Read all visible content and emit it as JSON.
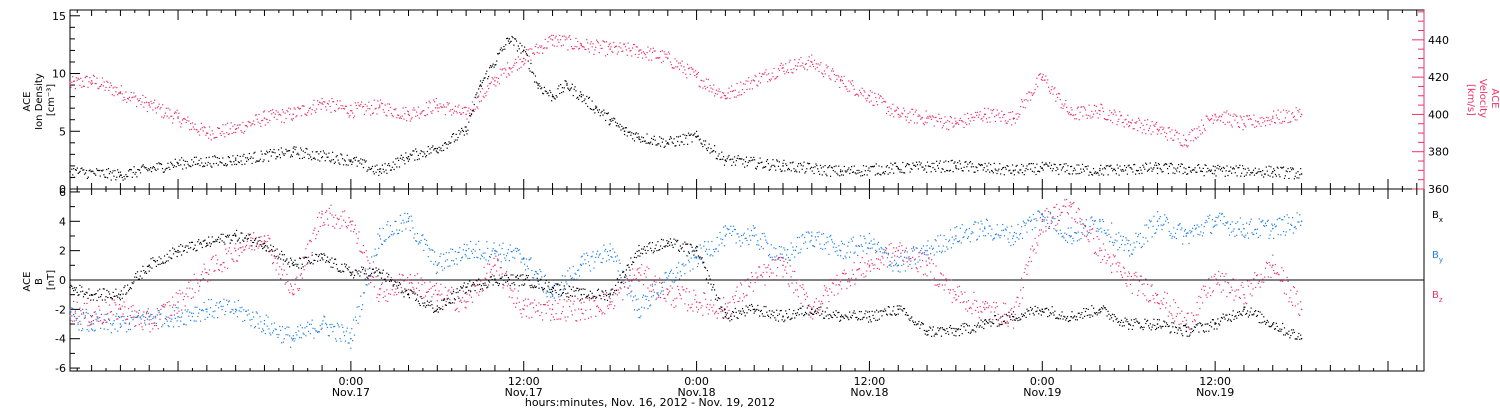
{
  "x_axis": {
    "caption": "hours:minutes, Nov. 16, 2012 - Nov. 19, 2012",
    "ticks": [
      {
        "time": "0:00",
        "date": "Nov.17",
        "hours": 24
      },
      {
        "time": "12:00",
        "date": "Nov.17",
        "hours": 36
      },
      {
        "time": "0:00",
        "date": "Nov.18",
        "hours": 48
      },
      {
        "time": "12:00",
        "date": "Nov.18",
        "hours": 60
      },
      {
        "time": "0:00",
        "date": "Nov.19",
        "hours": 72
      },
      {
        "time": "12:00",
        "date": "Nov.19",
        "hours": 84
      }
    ]
  },
  "top_panel": {
    "left_label": [
      "ACE",
      "Ion Density",
      "[cm⁻³]"
    ],
    "right_label": [
      "ACE",
      "Velocity",
      "[km/s]"
    ],
    "right_color": "#e8336a",
    "left_ticks": [
      "0",
      "5",
      "10",
      "15"
    ],
    "right_ticks": [
      "360",
      "380",
      "400",
      "420",
      "440"
    ]
  },
  "bottom_panel": {
    "left_label": [
      "ACE",
      "B",
      "[nT]"
    ],
    "left_ticks": [
      "-6",
      "-4",
      "-2",
      "0",
      "2",
      "4",
      "6"
    ],
    "legend": [
      {
        "name": "B",
        "sub": "x",
        "color": "#000000"
      },
      {
        "name": "B",
        "sub": "y",
        "color": "#1e7fe0"
      },
      {
        "name": "B",
        "sub": "z",
        "color": "#e8336a"
      }
    ]
  },
  "chart_data": [
    {
      "type": "scatter",
      "panel": "top",
      "x_units": "hours since 2012-11-16 00:00",
      "xlim": [
        4.5,
        98.5
      ],
      "series": [
        {
          "axis": "left",
          "color": "#000000",
          "ylim": [
            0,
            15.5
          ],
          "x": [
            4.5,
            8,
            12,
            16,
            20,
            24,
            26,
            28,
            30,
            32,
            33,
            35,
            36,
            37,
            38,
            39,
            40,
            41,
            42,
            43,
            44,
            46,
            48,
            50,
            54,
            58,
            62,
            66,
            70,
            72,
            76,
            80,
            84,
            88,
            90
          ],
          "y": [
            1.5,
            1.2,
            2.2,
            2.5,
            3.2,
            2.5,
            1.5,
            2.8,
            3.5,
            5,
            9,
            13,
            12,
            9,
            8,
            9,
            8,
            7,
            6,
            5,
            4.5,
            4,
            4.5,
            2.5,
            2,
            1.5,
            1.8,
            2,
            1.6,
            1.8,
            1.6,
            1.8,
            1.6,
            1.5,
            1.3
          ]
        },
        {
          "axis": "right",
          "color": "#e8336a",
          "ylim": [
            360,
            456
          ],
          "x": [
            4.5,
            6,
            8,
            10,
            12,
            14,
            16,
            18,
            20,
            22,
            24,
            26,
            28,
            30,
            32,
            34,
            35,
            36,
            38,
            40,
            42,
            44,
            46,
            48,
            50,
            52,
            54,
            56,
            58,
            60,
            62,
            64,
            66,
            68,
            70,
            72,
            74,
            76,
            78,
            80,
            82,
            84,
            86,
            88,
            90
          ],
          "y": [
            416,
            418,
            412,
            405,
            398,
            390,
            392,
            398,
            400,
            406,
            402,
            404,
            400,
            405,
            400,
            418,
            425,
            430,
            440,
            437,
            435,
            434,
            430,
            420,
            410,
            418,
            425,
            428,
            418,
            410,
            400,
            398,
            395,
            400,
            398,
            420,
            400,
            402,
            396,
            392,
            386,
            400,
            395,
            398,
            400
          ]
        }
      ]
    },
    {
      "type": "scatter",
      "panel": "bottom",
      "x_units": "hours since 2012-11-16 00:00",
      "xlim": [
        4.5,
        98.5
      ],
      "ylim": [
        -6.2,
        6.2
      ],
      "reference_line": 0,
      "series": [
        {
          "name": "Bx",
          "color": "#000000",
          "x": [
            4.5,
            6,
            8,
            10,
            12,
            14,
            16,
            18,
            20,
            22,
            24,
            26,
            28,
            30,
            32,
            34,
            36,
            38,
            40,
            42,
            44,
            46,
            48,
            50,
            52,
            54,
            56,
            58,
            60,
            62,
            64,
            66,
            68,
            70,
            72,
            74,
            76,
            78,
            80,
            82,
            84,
            86,
            88,
            90
          ],
          "y": [
            -0.5,
            -1,
            -1,
            1,
            2,
            2.5,
            3,
            2.5,
            1,
            1.5,
            0.5,
            0.5,
            -1,
            -2,
            -0.5,
            0,
            0,
            -0.5,
            -1,
            -1,
            2,
            2.5,
            2,
            -2.5,
            -2,
            -2.5,
            -2,
            -2.5,
            -2.5,
            -2,
            -3.5,
            -3.5,
            -3,
            -2.5,
            -2,
            -2.5,
            -2,
            -3,
            -3,
            -3.5,
            -3,
            -2,
            -3,
            -4
          ]
        },
        {
          "name": "By",
          "color": "#1e7fe0",
          "x": [
            4.5,
            6,
            8,
            10,
            12,
            14,
            16,
            18,
            20,
            22,
            24,
            26,
            28,
            30,
            32,
            34,
            36,
            38,
            40,
            42,
            44,
            46,
            48,
            50,
            52,
            54,
            56,
            58,
            60,
            62,
            64,
            66,
            68,
            70,
            72,
            74,
            76,
            78,
            80,
            82,
            84,
            86,
            88,
            90
          ],
          "y": [
            -2.5,
            -3,
            -3,
            -2.5,
            -2.5,
            -2,
            -2,
            -3,
            -4,
            -3,
            -4,
            3,
            4,
            1,
            2,
            2,
            1.5,
            -1,
            1,
            2,
            -2,
            0,
            1.5,
            3,
            3,
            1.5,
            3,
            2,
            2.5,
            1,
            2,
            3,
            3.5,
            3,
            4.5,
            3,
            4,
            2,
            4,
            3,
            4,
            3.5,
            3.5,
            4
          ]
        },
        {
          "name": "Bz",
          "color": "#e8336a",
          "x": [
            4.5,
            6,
            8,
            10,
            12,
            14,
            16,
            18,
            20,
            22,
            24,
            26,
            28,
            30,
            32,
            34,
            36,
            38,
            40,
            42,
            44,
            46,
            48,
            50,
            52,
            54,
            56,
            58,
            60,
            62,
            64,
            66,
            68,
            70,
            72,
            74,
            76,
            78,
            80,
            82,
            84,
            86,
            88,
            90
          ],
          "y": [
            -2,
            -2.5,
            -2,
            -3,
            -1.5,
            0.5,
            2,
            3,
            -1,
            4.5,
            4,
            -1,
            0,
            -1,
            -1.5,
            1,
            -2,
            -2,
            -2,
            -1.5,
            0.5,
            -1,
            -1.5,
            -2,
            0,
            1,
            -2,
            0,
            1,
            2,
            1,
            -1,
            -2,
            -2.5,
            4,
            5,
            2,
            0,
            -1,
            -3,
            0,
            -1,
            1,
            -2
          ]
        }
      ]
    }
  ]
}
